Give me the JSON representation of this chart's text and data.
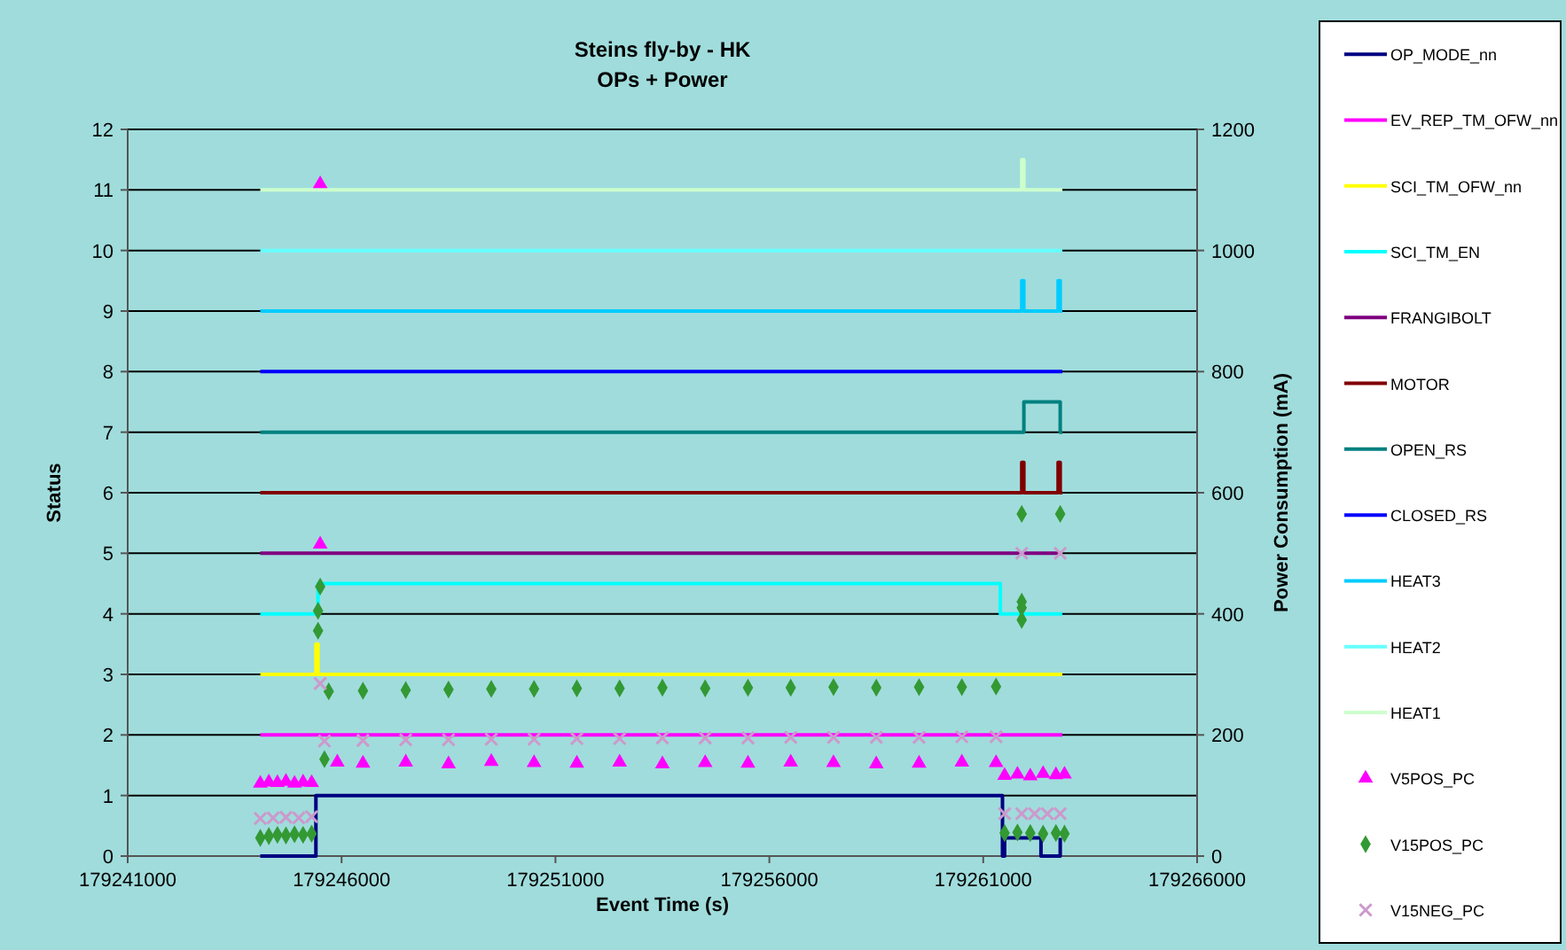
{
  "chart_data": {
    "type": "step",
    "title": "Steins fly-by - HK",
    "subtitle": "OPs + Power",
    "xlabel": "Event Time (s)",
    "ylabel": "Status",
    "y2label": "Power Consumption (mA)",
    "xlim": [
      179241000,
      179266000
    ],
    "xticks": [
      179241000,
      179246000,
      179251000,
      179256000,
      179261000,
      179266000
    ],
    "ylim": [
      0,
      12
    ],
    "yticks": [
      0,
      1,
      2,
      3,
      4,
      5,
      6,
      7,
      8,
      9,
      10,
      11,
      12
    ],
    "y2lim": [
      0,
      1200
    ],
    "y2ticks": [
      0,
      200,
      400,
      600,
      800,
      1000,
      1200
    ],
    "grid": "y",
    "legend": "right",
    "series": [
      {
        "name": "OP_MODE_nn",
        "color": "#000080",
        "x": [
          179244100,
          179245400,
          179261450,
          179261500,
          179262350,
          179262800
        ],
        "values": [
          0,
          1,
          0,
          0.3,
          0,
          0.3
        ]
      },
      {
        "name": "EV_REP_TM_OFW_nn",
        "color": "#ff00ff",
        "x": [
          179244100,
          179262850
        ],
        "values": [
          2,
          2
        ]
      },
      {
        "name": "SCI_TM_OFW_nn",
        "color": "#ffff00",
        "x": [
          179244100,
          179245400,
          179245450,
          179262850
        ],
        "values": [
          3,
          3.5,
          3,
          3
        ]
      },
      {
        "name": "SCI_TM_EN",
        "color": "#00ffff",
        "x": [
          179244100,
          179245450,
          179261400,
          179262850
        ],
        "values": [
          4,
          4.5,
          4,
          4
        ]
      },
      {
        "name": "FRANGIBOLT",
        "color": "#800080",
        "x": [
          179244100,
          179262850
        ],
        "values": [
          5,
          5
        ]
      },
      {
        "name": "MOTOR",
        "color": "#800000",
        "x": [
          179244100,
          179261900,
          179261950,
          179262750,
          179262800,
          179262850
        ],
        "values": [
          6,
          6.5,
          6,
          6.5,
          6,
          6
        ]
      },
      {
        "name": "OPEN_RS",
        "color": "#008080",
        "x": [
          179244100,
          179261950,
          179262800,
          179262850
        ],
        "values": [
          7,
          7.5,
          7,
          7
        ]
      },
      {
        "name": "CLOSED_RS",
        "color": "#0000ff",
        "x": [
          179244100,
          179262850
        ],
        "values": [
          8,
          8
        ]
      },
      {
        "name": "HEAT3",
        "color": "#00ccff",
        "x": [
          179244100,
          179261900,
          179261950,
          179262750,
          179262800,
          179262850
        ],
        "values": [
          9,
          9.5,
          9,
          9.5,
          9,
          9
        ]
      },
      {
        "name": "HEAT2",
        "color": "#66ffff",
        "x": [
          179244100,
          179262850
        ],
        "values": [
          10,
          10
        ]
      },
      {
        "name": "HEAT1",
        "color": "#ccffcc",
        "x": [
          179244100,
          179261900,
          179261950,
          179262850
        ],
        "values": [
          11,
          11.5,
          11,
          11
        ]
      },
      {
        "name": "V5POS_PC",
        "type": "scatter",
        "axis": "y2",
        "marker": "triangle",
        "color": "#ff00ff",
        "x": [
          179244100,
          179244300,
          179244500,
          179244700,
          179244900,
          179245100,
          179245300,
          179245500,
          179245500,
          179245900,
          179246500,
          179247500,
          179248500,
          179249500,
          179250500,
          179251500,
          179252500,
          179253500,
          179254500,
          179255500,
          179256500,
          179257500,
          179258500,
          179259500,
          179260500,
          179261300,
          179261500,
          179261800,
          179262100,
          179262400,
          179262700,
          179262900
        ],
        "values": [
          120,
          122,
          121,
          123,
          120,
          122,
          121,
          1110,
          515,
          155,
          153,
          155,
          152,
          156,
          154,
          153,
          155,
          152,
          154,
          153,
          155,
          154,
          152,
          153,
          155,
          154,
          133,
          135,
          132,
          136,
          134,
          135
        ]
      },
      {
        "name": "V15POS_PC",
        "type": "scatter",
        "axis": "y2",
        "marker": "diamond",
        "color": "#339933",
        "x": [
          179244100,
          179244300,
          179244500,
          179244700,
          179244900,
          179245100,
          179245300,
          179245450,
          179245450,
          179245500,
          179245600,
          179245700,
          179246500,
          179247500,
          179248500,
          179249500,
          179250500,
          179251500,
          179252500,
          179253500,
          179254500,
          179255500,
          179256500,
          179257500,
          179258500,
          179259500,
          179260500,
          179261300,
          179261500,
          179261800,
          179261900,
          179261900,
          179261900,
          179261900,
          179262100,
          179262400,
          179262700,
          179262800,
          179262900
        ],
        "values": [
          30,
          33,
          35,
          34,
          36,
          35,
          37,
          405,
          372,
          445,
          160,
          272,
          273,
          274,
          275,
          276,
          276,
          277,
          277,
          278,
          277,
          278,
          278,
          279,
          278,
          279,
          279,
          280,
          38,
          39,
          565,
          420,
          410,
          390,
          38,
          37,
          38,
          565,
          37
        ]
      },
      {
        "name": "V15NEG_PC",
        "type": "scatter",
        "axis": "y2",
        "marker": "cross",
        "color": "#cc99cc",
        "x": [
          179244100,
          179244400,
          179244700,
          179245000,
          179245300,
          179245500,
          179245600,
          179246500,
          179247500,
          179248500,
          179249500,
          179250500,
          179251500,
          179252500,
          179253500,
          179254500,
          179255500,
          179256500,
          179257500,
          179258500,
          179259500,
          179260500,
          179261300,
          179261500,
          179261900,
          179261900,
          179262200,
          179262500,
          179262800,
          179262800
        ],
        "values": [
          62,
          63,
          64,
          63,
          65,
          285,
          190,
          191,
          192,
          192,
          193,
          193,
          194,
          194,
          195,
          195,
          195,
          196,
          196,
          196,
          196,
          197,
          197,
          70,
          500,
          70,
          70,
          70,
          500,
          70
        ]
      }
    ]
  }
}
